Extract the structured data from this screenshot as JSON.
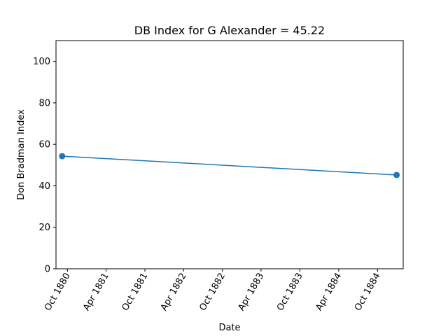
{
  "chart_data": {
    "type": "line",
    "title": "DB Index for G Alexander = 45.22",
    "xlabel": "Date",
    "ylabel": "Don Bradman Index",
    "x_tick_labels": [
      "Oct 1880",
      "Apr 1881",
      "Oct 1881",
      "Apr 1882",
      "Oct 1882",
      "Apr 1883",
      "Oct 1883",
      "Apr 1884",
      "Oct 1884"
    ],
    "y_ticks": [
      0,
      20,
      40,
      60,
      80,
      100
    ],
    "ylim": [
      0,
      110
    ],
    "xlim": [
      "1880-08-08",
      "1885-01-30"
    ],
    "series": [
      {
        "x": [
          "1880-09-06",
          "1884-12-30"
        ],
        "y": [
          54.3,
          45.22
        ],
        "color": "#1f77b4",
        "marker": "circle"
      }
    ],
    "grid": false,
    "legend": false
  }
}
